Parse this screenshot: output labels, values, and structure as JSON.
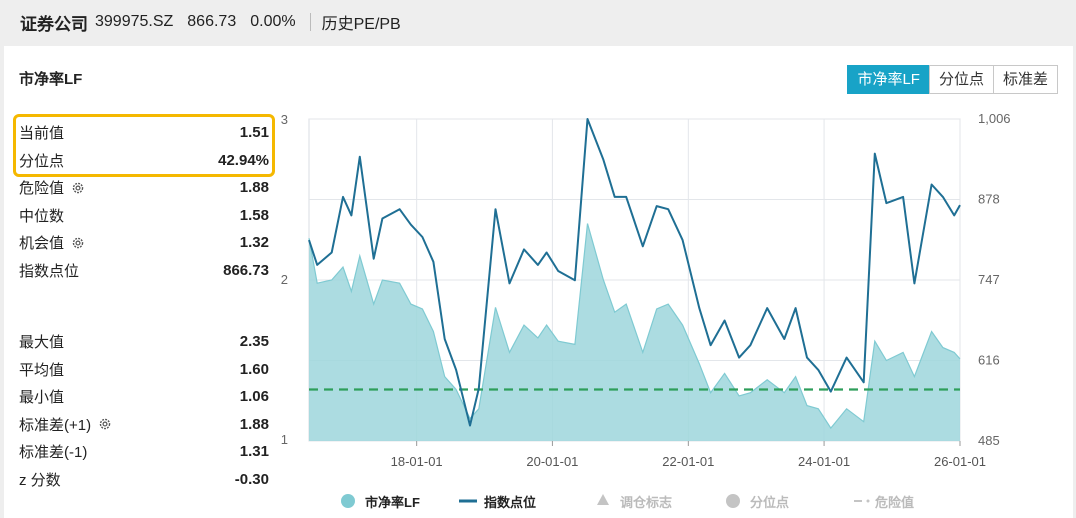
{
  "header": {
    "name": "证券公司",
    "code": "399975.SZ",
    "price": "866.73",
    "change": "0.00%",
    "section": "历史PE/PB"
  },
  "card": {
    "title": "市净率LF",
    "tabs": [
      "市净率LF",
      "分位点",
      "标准差"
    ],
    "active_tab": 0
  },
  "stats_top": [
    {
      "label": "当前值",
      "value": "1.51"
    },
    {
      "label": "分位点",
      "value": "42.94%"
    },
    {
      "label": "危险值",
      "value": "1.88",
      "icon": "gear-icon"
    },
    {
      "label": "中位数",
      "value": "1.58"
    },
    {
      "label": "机会值",
      "value": "1.32",
      "icon": "gear-icon"
    },
    {
      "label": "指数点位",
      "value": "866.73"
    }
  ],
  "stats_bottom": [
    {
      "label": "最大值",
      "value": "2.35"
    },
    {
      "label": "平均值",
      "value": "1.60"
    },
    {
      "label": "最小值",
      "value": "1.06"
    },
    {
      "label": "标准差(+1)",
      "value": "1.88",
      "icon": "gear-icon"
    },
    {
      "label": "标准差(-1)",
      "value": "1.31"
    },
    {
      "label": "z 分数",
      "value": "-0.30"
    }
  ],
  "colors": {
    "accent": "#18a3c7",
    "pb_fill": "#9ed6dc",
    "pb_line": "#7fcad2",
    "index_line": "#1f6f94",
    "danger_line": "#2e9e5b",
    "highlight": "#f5b800"
  },
  "chart_data": {
    "type": "area",
    "x_ticks": [
      "18-01-01",
      "20-01-01",
      "22-01-01",
      "24-01-01",
      "26-01-01"
    ],
    "x_tick_dates": [
      "2018-01-01",
      "2020-01-01",
      "2022-01-01",
      "2024-01-01",
      "2026-01-01"
    ],
    "x_range": [
      "2016-06-01",
      "2026-01-01"
    ],
    "y_left_ticks": [
      "3",
      "2",
      "1"
    ],
    "y_left_range": [
      1,
      3
    ],
    "y_right_ticks": [
      "1,006",
      "878",
      "747",
      "616",
      "485"
    ],
    "y_right_range": [
      485,
      1006
    ],
    "grid": true,
    "legend_position": "bottom",
    "legend": [
      {
        "name": "市净率LF",
        "icon": "circle",
        "enabled": true
      },
      {
        "name": "指数点位",
        "icon": "line",
        "enabled": true
      },
      {
        "name": "调仓标志",
        "icon": "triangle",
        "enabled": false
      },
      {
        "name": "分位点",
        "icon": "circle",
        "enabled": false
      },
      {
        "name": "危险值",
        "icon": "dash",
        "enabled": false
      }
    ],
    "reference_line": {
      "name": "机会值",
      "value": 1.32
    },
    "series": [
      {
        "name": "市净率LF",
        "axis": "left",
        "points": [
          [
            "2016-06-01",
            2.26
          ],
          [
            "2016-07-15",
            1.98
          ],
          [
            "2016-10-01",
            2.0
          ],
          [
            "2016-12-01",
            2.08
          ],
          [
            "2017-01-15",
            1.93
          ],
          [
            "2017-03-01",
            2.15
          ],
          [
            "2017-05-15",
            1.85
          ],
          [
            "2017-07-01",
            2.0
          ],
          [
            "2017-10-01",
            1.98
          ],
          [
            "2017-12-01",
            1.85
          ],
          [
            "2018-02-01",
            1.82
          ],
          [
            "2018-04-01",
            1.68
          ],
          [
            "2018-06-01",
            1.4
          ],
          [
            "2018-08-01",
            1.32
          ],
          [
            "2018-10-15",
            1.14
          ],
          [
            "2018-12-01",
            1.2
          ],
          [
            "2019-03-01",
            1.83
          ],
          [
            "2019-05-15",
            1.55
          ],
          [
            "2019-08-01",
            1.72
          ],
          [
            "2019-10-15",
            1.64
          ],
          [
            "2019-12-01",
            1.72
          ],
          [
            "2020-02-01",
            1.62
          ],
          [
            "2020-05-01",
            1.6
          ],
          [
            "2020-07-08",
            2.35
          ],
          [
            "2020-10-01",
            2.0
          ],
          [
            "2020-12-01",
            1.8
          ],
          [
            "2021-02-01",
            1.85
          ],
          [
            "2021-05-01",
            1.55
          ],
          [
            "2021-07-15",
            1.82
          ],
          [
            "2021-09-15",
            1.85
          ],
          [
            "2021-12-01",
            1.72
          ],
          [
            "2022-03-01",
            1.48
          ],
          [
            "2022-05-01",
            1.3
          ],
          [
            "2022-07-15",
            1.42
          ],
          [
            "2022-10-01",
            1.28
          ],
          [
            "2022-12-01",
            1.3
          ],
          [
            "2023-03-01",
            1.38
          ],
          [
            "2023-06-01",
            1.3
          ],
          [
            "2023-08-01",
            1.4
          ],
          [
            "2023-10-01",
            1.22
          ],
          [
            "2023-12-01",
            1.2
          ],
          [
            "2024-02-06",
            1.08
          ],
          [
            "2024-05-01",
            1.2
          ],
          [
            "2024-08-01",
            1.12
          ],
          [
            "2024-09-30",
            1.62
          ],
          [
            "2024-12-01",
            1.5
          ],
          [
            "2025-03-01",
            1.55
          ],
          [
            "2025-05-01",
            1.4
          ],
          [
            "2025-08-01",
            1.68
          ],
          [
            "2025-10-01",
            1.58
          ],
          [
            "2025-12-01",
            1.55
          ],
          [
            "2026-01-01",
            1.51
          ]
        ]
      },
      {
        "name": "指数点位",
        "axis": "right",
        "points": [
          [
            "2016-06-01",
            810
          ],
          [
            "2016-07-15",
            770
          ],
          [
            "2016-10-01",
            790
          ],
          [
            "2016-12-01",
            880
          ],
          [
            "2017-01-15",
            850
          ],
          [
            "2017-03-01",
            945
          ],
          [
            "2017-05-15",
            780
          ],
          [
            "2017-07-01",
            845
          ],
          [
            "2017-10-01",
            860
          ],
          [
            "2017-12-01",
            835
          ],
          [
            "2018-02-01",
            815
          ],
          [
            "2018-04-01",
            775
          ],
          [
            "2018-06-01",
            650
          ],
          [
            "2018-08-01",
            600
          ],
          [
            "2018-10-15",
            510
          ],
          [
            "2018-12-01",
            570
          ],
          [
            "2019-03-01",
            860
          ],
          [
            "2019-05-15",
            740
          ],
          [
            "2019-08-01",
            795
          ],
          [
            "2019-10-15",
            770
          ],
          [
            "2019-12-01",
            790
          ],
          [
            "2020-02-01",
            760
          ],
          [
            "2020-05-01",
            745
          ],
          [
            "2020-07-08",
            1006
          ],
          [
            "2020-10-01",
            940
          ],
          [
            "2020-12-01",
            880
          ],
          [
            "2021-02-01",
            880
          ],
          [
            "2021-05-01",
            800
          ],
          [
            "2021-07-15",
            865
          ],
          [
            "2021-09-15",
            860
          ],
          [
            "2021-12-01",
            810
          ],
          [
            "2022-03-01",
            700
          ],
          [
            "2022-05-01",
            640
          ],
          [
            "2022-07-15",
            680
          ],
          [
            "2022-10-01",
            620
          ],
          [
            "2022-12-01",
            640
          ],
          [
            "2023-03-01",
            700
          ],
          [
            "2023-06-01",
            650
          ],
          [
            "2023-08-01",
            700
          ],
          [
            "2023-10-01",
            620
          ],
          [
            "2023-12-01",
            600
          ],
          [
            "2024-02-06",
            565
          ],
          [
            "2024-05-01",
            620
          ],
          [
            "2024-08-01",
            580
          ],
          [
            "2024-09-30",
            950
          ],
          [
            "2024-12-01",
            870
          ],
          [
            "2025-03-01",
            880
          ],
          [
            "2025-05-01",
            740
          ],
          [
            "2025-08-01",
            900
          ],
          [
            "2025-10-01",
            880
          ],
          [
            "2025-12-01",
            850
          ],
          [
            "2026-01-01",
            866.73
          ]
        ]
      }
    ]
  }
}
